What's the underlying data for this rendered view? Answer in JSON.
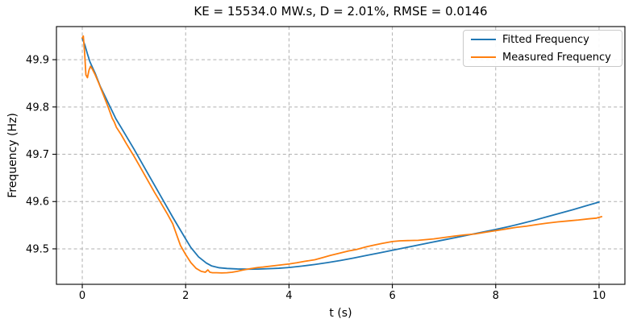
{
  "figure": {
    "background_color": "#ffffff",
    "text_color": "#000000",
    "spine_color": "#000000"
  },
  "chart_data": {
    "type": "line",
    "title": "KE = 15534.0 MW.s, D = 2.01%, RMSE = 0.0146",
    "xlabel": "t (s)",
    "ylabel": "Frequency (Hz)",
    "xlim": [
      -0.5,
      10.5
    ],
    "ylim": [
      49.425,
      49.97
    ],
    "xtick_values": [
      0,
      2,
      4,
      6,
      8,
      10
    ],
    "xtick_labels": [
      "0",
      "2",
      "4",
      "6",
      "8",
      "10"
    ],
    "ytick_values": [
      49.5,
      49.6,
      49.7,
      49.8,
      49.9
    ],
    "ytick_labels": [
      "49.5",
      "49.6",
      "49.7",
      "49.8",
      "49.9"
    ],
    "grid": {
      "visible": true,
      "style": "dashed",
      "color": "#b0b0b0"
    },
    "legend": {
      "position": "upper right"
    },
    "series": [
      {
        "name": "Fitted Frequency",
        "color": "#1f77b4",
        "x": [
          0,
          0.05,
          0.1,
          0.15,
          0.2,
          0.25,
          0.35,
          0.5,
          0.65,
          0.75,
          1.0,
          1.25,
          1.5,
          1.75,
          2.0,
          2.1,
          2.25,
          2.4,
          2.5,
          2.65,
          2.8,
          3.0,
          3.2,
          3.4,
          3.6,
          3.8,
          4.0,
          4.25,
          4.5,
          4.75,
          5.0,
          5.25,
          5.5,
          5.75,
          6.0,
          6.25,
          6.5,
          6.75,
          7.0,
          7.25,
          7.5,
          7.75,
          8.0,
          8.25,
          8.5,
          8.75,
          9.0,
          9.25,
          9.5,
          9.75,
          10.0
        ],
        "y": [
          49.945,
          49.931,
          49.912,
          49.895,
          49.883,
          49.871,
          49.843,
          49.809,
          49.775,
          49.757,
          49.711,
          49.663,
          49.615,
          49.567,
          49.521,
          49.503,
          49.483,
          49.47,
          49.464,
          49.46,
          49.4585,
          49.4575,
          49.457,
          49.4572,
          49.458,
          49.459,
          49.4605,
          49.4635,
          49.467,
          49.471,
          49.4755,
          49.4805,
          49.486,
          49.4915,
          49.497,
          49.5025,
          49.508,
          49.5135,
          49.519,
          49.5245,
          49.53,
          49.5355,
          49.541,
          49.547,
          49.5535,
          49.5605,
          49.568,
          49.5755,
          49.583,
          49.591,
          49.599
        ]
      },
      {
        "name": "Measured Frequency",
        "color": "#ff7f0e",
        "x": [
          0,
          0.02,
          0.045,
          0.07,
          0.1,
          0.13,
          0.16,
          0.2,
          0.25,
          0.32,
          0.4,
          0.5,
          0.58,
          0.62,
          0.66,
          0.75,
          0.85,
          1.0,
          1.1,
          1.25,
          1.4,
          1.5,
          1.65,
          1.75,
          1.9,
          2.0,
          2.1,
          2.2,
          2.3,
          2.38,
          2.43,
          2.47,
          2.52,
          2.6,
          2.7,
          2.8,
          2.9,
          3.0,
          3.1,
          3.25,
          3.4,
          3.5,
          3.65,
          3.8,
          4.0,
          4.15,
          4.3,
          4.5,
          4.65,
          4.8,
          5.0,
          5.15,
          5.3,
          5.5,
          5.65,
          5.8,
          6.0,
          6.15,
          6.3,
          6.5,
          6.65,
          6.8,
          7.0,
          7.2,
          7.4,
          7.6,
          7.8,
          8.0,
          8.2,
          8.4,
          8.6,
          8.8,
          9.0,
          9.2,
          9.4,
          9.6,
          9.8,
          9.95,
          10.05
        ],
        "y": [
          49.946,
          49.95,
          49.915,
          49.868,
          49.862,
          49.878,
          49.886,
          49.879,
          49.868,
          49.85,
          49.828,
          49.8,
          49.776,
          49.768,
          49.757,
          49.742,
          49.723,
          49.696,
          49.677,
          49.648,
          49.619,
          49.601,
          49.573,
          49.553,
          49.507,
          49.488,
          49.471,
          49.459,
          49.4525,
          49.4505,
          49.4555,
          49.4505,
          49.4495,
          49.4495,
          49.449,
          49.4495,
          49.4505,
          49.4525,
          49.455,
          49.458,
          49.4605,
          49.4615,
          49.4635,
          49.4655,
          49.468,
          49.4705,
          49.4735,
          49.477,
          49.4815,
          49.486,
          49.4915,
          49.4955,
          49.4985,
          49.5045,
          49.508,
          49.5115,
          49.5155,
          49.517,
          49.5175,
          49.518,
          49.5195,
          49.521,
          49.524,
          49.527,
          49.5295,
          49.5315,
          49.535,
          49.5385,
          49.542,
          49.5455,
          49.548,
          49.5515,
          49.5545,
          49.557,
          49.559,
          49.561,
          49.5635,
          49.565,
          49.568
        ]
      }
    ]
  }
}
